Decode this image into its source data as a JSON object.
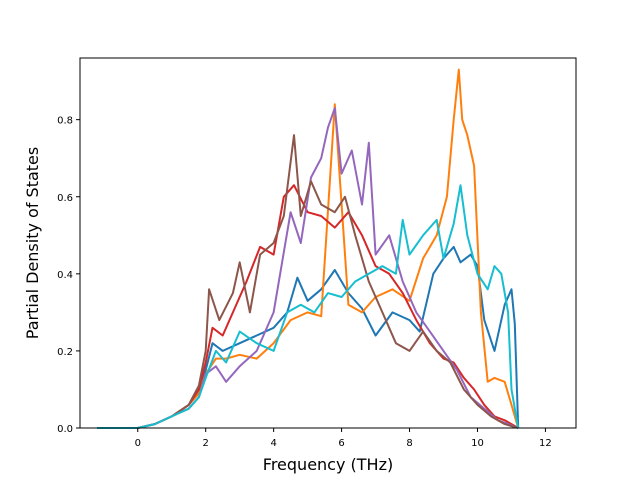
{
  "chart_data": {
    "type": "line",
    "title": "",
    "xlabel": "Frequency (THz)",
    "ylabel": "Partial Density of States",
    "xlim": [
      -1.7,
      12.9
    ],
    "ylim": [
      0,
      0.96
    ],
    "xticks": [
      0,
      2,
      4,
      6,
      8,
      10,
      12
    ],
    "yticks": [
      0.0,
      0.2,
      0.4,
      0.6,
      0.8
    ],
    "ytick_labels": [
      "0.0",
      "0.2",
      "0.4",
      "0.6",
      "0.8"
    ],
    "grid": false,
    "legend": false,
    "series": [
      {
        "color": "#1f77b4",
        "x": [
          -1.2,
          0,
          0.5,
          1.0,
          1.5,
          1.8,
          2.0,
          2.2,
          2.5,
          3.0,
          3.5,
          4.0,
          4.4,
          4.7,
          5.0,
          5.4,
          5.8,
          6.2,
          6.6,
          7.0,
          7.5,
          8.0,
          8.3,
          8.7,
          9.0,
          9.3,
          9.5,
          9.8,
          10.0,
          10.2,
          10.5,
          10.8,
          11.0,
          11.1,
          11.2
        ],
        "y": [
          0,
          0,
          0.01,
          0.03,
          0.06,
          0.09,
          0.15,
          0.22,
          0.2,
          0.22,
          0.24,
          0.26,
          0.3,
          0.39,
          0.33,
          0.36,
          0.41,
          0.35,
          0.31,
          0.24,
          0.3,
          0.28,
          0.25,
          0.4,
          0.44,
          0.47,
          0.43,
          0.45,
          0.42,
          0.28,
          0.2,
          0.32,
          0.36,
          0.27,
          0
        ]
      },
      {
        "color": "#ff7f0e",
        "x": [
          -1.2,
          0,
          0.5,
          1.0,
          1.5,
          1.8,
          2.0,
          2.3,
          2.6,
          3.0,
          3.5,
          4.0,
          4.5,
          5.0,
          5.4,
          5.8,
          6.2,
          6.6,
          7.0,
          7.5,
          8.0,
          8.4,
          8.8,
          9.1,
          9.3,
          9.45,
          9.55,
          9.7,
          9.9,
          10.1,
          10.3,
          10.5,
          10.8,
          11.0,
          11.2
        ],
        "y": [
          0,
          0,
          0.01,
          0.03,
          0.06,
          0.09,
          0.14,
          0.18,
          0.18,
          0.19,
          0.18,
          0.22,
          0.28,
          0.3,
          0.29,
          0.84,
          0.32,
          0.3,
          0.34,
          0.36,
          0.33,
          0.44,
          0.5,
          0.6,
          0.8,
          0.93,
          0.8,
          0.76,
          0.68,
          0.3,
          0.12,
          0.13,
          0.12,
          0.06,
          0
        ]
      },
      {
        "color": "#d62728",
        "x": [
          -1.2,
          0,
          0.5,
          1.0,
          1.5,
          1.8,
          2.0,
          2.2,
          2.5,
          2.8,
          3.2,
          3.6,
          4.0,
          4.3,
          4.6,
          5.0,
          5.4,
          5.8,
          6.2,
          6.6,
          7.0,
          7.4,
          7.8,
          8.2,
          8.6,
          9.0,
          9.3,
          9.6,
          9.9,
          10.2,
          10.5,
          10.8,
          11.0,
          11.2
        ],
        "y": [
          0,
          0,
          0.01,
          0.03,
          0.06,
          0.1,
          0.17,
          0.26,
          0.24,
          0.3,
          0.38,
          0.47,
          0.45,
          0.6,
          0.63,
          0.56,
          0.55,
          0.52,
          0.56,
          0.5,
          0.42,
          0.4,
          0.35,
          0.28,
          0.22,
          0.18,
          0.17,
          0.13,
          0.1,
          0.06,
          0.03,
          0.02,
          0.01,
          0
        ]
      },
      {
        "color": "#9467bd",
        "x": [
          -1.2,
          0,
          0.5,
          1.0,
          1.5,
          1.8,
          2.0,
          2.3,
          2.6,
          3.0,
          3.5,
          4.0,
          4.5,
          4.8,
          5.1,
          5.4,
          5.6,
          5.8,
          6.0,
          6.3,
          6.6,
          6.8,
          7.0,
          7.4,
          7.8,
          8.2,
          8.6,
          9.0,
          9.4,
          9.8,
          10.2,
          10.6,
          10.9,
          11.2
        ],
        "y": [
          0,
          0,
          0.01,
          0.03,
          0.05,
          0.08,
          0.14,
          0.16,
          0.12,
          0.16,
          0.2,
          0.3,
          0.56,
          0.48,
          0.65,
          0.7,
          0.78,
          0.83,
          0.66,
          0.72,
          0.58,
          0.74,
          0.45,
          0.5,
          0.38,
          0.3,
          0.25,
          0.2,
          0.15,
          0.08,
          0.05,
          0.02,
          0.01,
          0
        ]
      },
      {
        "color": "#8c564b",
        "x": [
          -1.2,
          0,
          0.5,
          1.0,
          1.5,
          1.8,
          2.0,
          2.1,
          2.4,
          2.8,
          3.0,
          3.3,
          3.6,
          4.0,
          4.3,
          4.6,
          4.8,
          5.1,
          5.4,
          5.8,
          6.1,
          6.4,
          6.8,
          7.2,
          7.6,
          8.0,
          8.4,
          8.8,
          9.2,
          9.6,
          10.0,
          10.4,
          10.8,
          11.2
        ],
        "y": [
          0,
          0,
          0.01,
          0.03,
          0.06,
          0.11,
          0.2,
          0.36,
          0.28,
          0.35,
          0.43,
          0.3,
          0.45,
          0.48,
          0.55,
          0.76,
          0.55,
          0.64,
          0.58,
          0.56,
          0.6,
          0.5,
          0.38,
          0.3,
          0.22,
          0.2,
          0.25,
          0.2,
          0.17,
          0.1,
          0.06,
          0.03,
          0.01,
          0
        ]
      },
      {
        "color": "#17becf",
        "x": [
          -1.2,
          0,
          0.5,
          1.0,
          1.5,
          1.8,
          2.0,
          2.3,
          2.6,
          3.0,
          3.5,
          4.0,
          4.4,
          4.8,
          5.2,
          5.6,
          6.0,
          6.4,
          6.8,
          7.2,
          7.6,
          7.8,
          8.0,
          8.4,
          8.8,
          9.0,
          9.3,
          9.5,
          9.7,
          10.0,
          10.3,
          10.5,
          10.7,
          10.9,
          11.0,
          11.2
        ],
        "y": [
          0,
          0,
          0.01,
          0.03,
          0.05,
          0.08,
          0.13,
          0.2,
          0.17,
          0.25,
          0.22,
          0.2,
          0.3,
          0.32,
          0.3,
          0.35,
          0.34,
          0.38,
          0.4,
          0.42,
          0.4,
          0.54,
          0.45,
          0.5,
          0.54,
          0.44,
          0.53,
          0.63,
          0.5,
          0.4,
          0.36,
          0.42,
          0.4,
          0.3,
          0.1,
          0
        ]
      }
    ]
  }
}
